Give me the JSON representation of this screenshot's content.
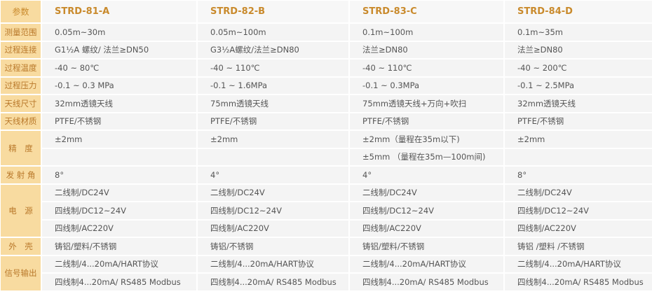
{
  "colors": {
    "label_bg": "#f8dba0",
    "label_text": "#b9782a",
    "model_text": "#c98a2c",
    "cell_bg": "#f4f4f4"
  },
  "header": {
    "param_label": "参数",
    "models": [
      "STRD-81-A",
      "STRD-82-B",
      "STRD-83-C",
      "STRD-84-D"
    ]
  },
  "groups": [
    {
      "label": "测量范围",
      "lines": [
        [
          "0.05m~30m",
          "0.05m~100m",
          "0.1m~100m",
          "0.1m~35m"
        ]
      ]
    },
    {
      "label": "过程连接",
      "lines": [
        [
          "G1½A  螺纹/ 法兰≥DN50",
          "G3½A螺纹/法兰≥DN80",
          "法兰≥DN80",
          "法兰≥DN80"
        ]
      ]
    },
    {
      "label": "过程温度",
      "lines": [
        [
          "-40 ~ 80℃",
          "-40 ~ 110℃",
          "-40 ~ 110℃",
          "-40 ~ 200℃"
        ]
      ]
    },
    {
      "label": "过程压力",
      "lines": [
        [
          "-0.1 ~ 0.3 MPa",
          "-0.1 ~ 1.6MPa",
          "-0.1 ~ 0.3MPa",
          "-0.1 ~ 2.5MPa"
        ]
      ]
    },
    {
      "label": "天线尺寸",
      "lines": [
        [
          "32mm透镜天线",
          "75mm透镜天线",
          "75mm透镜天线+万向+吹扫",
          "32mm透镜天线"
        ]
      ]
    },
    {
      "label": "天线材质",
      "lines": [
        [
          "PTFE/不锈钢",
          "PTFE/不锈钢",
          "PTFE/不锈钢",
          "PTFE/不锈钢"
        ]
      ]
    },
    {
      "label": "精　度",
      "lines": [
        [
          "±2mm",
          "±2mm",
          "±2mm（量程在35m以下)",
          "±2mm"
        ],
        [
          "",
          "",
          "±5mm （量程在35m—100m间)",
          ""
        ]
      ]
    },
    {
      "label": "发 射 角",
      "lines": [
        [
          "8°",
          "4°",
          "4°",
          "8°"
        ]
      ]
    },
    {
      "label": "电　源",
      "lines": [
        [
          "二线制/DC24V",
          "二线制/DC24V",
          "二线制/DC24V",
          "二线制/DC24V"
        ],
        [
          "四线制/DC12~24V",
          "四线制/DC12~24V",
          "四线制/DC12~24V",
          "四线制/DC12~24V"
        ],
        [
          "四线制/AC220V",
          "四线制/AC220V",
          "四线制/AC220V",
          "四线制/AC220V"
        ]
      ]
    },
    {
      "label": "外　壳",
      "lines": [
        [
          "铸铝/塑料/不锈钢",
          "铸铝/不锈钢",
          "铸铝/塑料/不锈钢",
          "铸铝 /塑料 /不锈钢"
        ]
      ]
    },
    {
      "label": "信号输出",
      "lines": [
        [
          "二线制/4...20mA/HART协议",
          "二线制/4...20mA/HART协议",
          "二线制/4...20mA/HART协议",
          "二线制/4...20mA/HART协议"
        ],
        [
          "四线制4...20mA/ RS485 Modbus",
          "四线制4...20mA/ RS485 Modbus",
          "四线制4...20mA/ RS485 Modbus",
          "四线制4...20mA/ RS485 Modbus"
        ]
      ]
    }
  ]
}
